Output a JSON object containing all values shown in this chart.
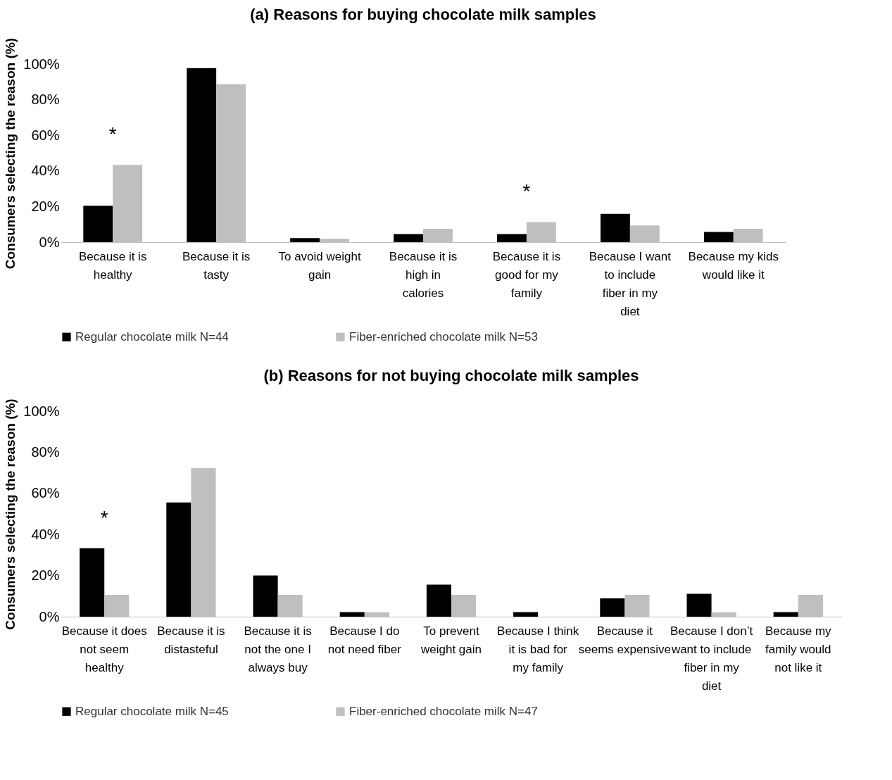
{
  "chart_data": [
    {
      "type": "bar",
      "title": "(a) Reasons for buying chocolate milk samples",
      "ylabel": "Consumers selecting the reason (%)",
      "categories": [
        "Because it is healthy",
        "Because it is tasty",
        "To avoid weight gain",
        "Because it is high in calories",
        "Because it is good for my family",
        "Because I want to include fiber in my diet",
        "Because my kids would like it"
      ],
      "series": [
        {
          "name": "Regular chocolate milk N=44",
          "color": "#000000",
          "values": [
            20.5,
            97.7,
            2.3,
            4.5,
            4.5,
            15.9,
            5.7
          ]
        },
        {
          "name": "Fiber-enriched chocolate milk N=53",
          "color": "#bfbfbf",
          "values": [
            43.4,
            88.7,
            1.9,
            7.5,
            11.3,
            9.4,
            7.5
          ]
        }
      ],
      "ylim": [
        0,
        100
      ],
      "yticks": [
        {
          "value": 0,
          "label": "0%"
        },
        {
          "value": 20,
          "label": "20%"
        },
        {
          "value": 40,
          "label": "40%"
        },
        {
          "value": 60,
          "label": "60%"
        },
        {
          "value": 80,
          "label": "80%"
        },
        {
          "value": 100,
          "label": "100%"
        }
      ],
      "legend": "bottom",
      "grid": false,
      "annotations": [
        {
          "text": "*",
          "x": "Because it is healthy",
          "y": 43.4
        },
        {
          "text": "*",
          "x": "Because it is good for my family",
          "y": 11.3
        }
      ]
    },
    {
      "type": "bar",
      "title": "(b) Reasons for not buying chocolate milk  samples",
      "ylabel": "Consumers selecting the reason (%)",
      "categories": [
        "Because it does not seem healthy",
        "Because it is distasteful",
        "Because it is not the one I always buy",
        "Because I do not need fiber",
        "To prevent weight gain",
        "Because I think it is bad for my family",
        "Because it seems expensive",
        "Because I don’t want to include fiber in my diet",
        "Because my family would not like it"
      ],
      "series": [
        {
          "name": "Regular chocolate milk N=45",
          "color": "#000000",
          "values": [
            33.3,
            55.6,
            20.0,
            2.2,
            15.6,
            2.2,
            8.9,
            11.1,
            2.2
          ]
        },
        {
          "name": "Fiber-enriched chocolate milk N=47",
          "color": "#bfbfbf",
          "values": [
            10.6,
            72.3,
            10.6,
            2.1,
            10.6,
            0,
            10.6,
            2.1,
            10.6
          ]
        }
      ],
      "ylim": [
        0,
        100
      ],
      "yticks": [
        {
          "value": 0,
          "label": "0%"
        },
        {
          "value": 20,
          "label": "20%"
        },
        {
          "value": 40,
          "label": "40%"
        },
        {
          "value": 60,
          "label": "60%"
        },
        {
          "value": 80,
          "label": "80%"
        },
        {
          "value": 100,
          "label": "100%"
        }
      ],
      "legend": "bottom",
      "grid": false,
      "annotations": [
        {
          "text": "*",
          "x": "Because it does not seem healthy",
          "y": 33.3
        }
      ]
    }
  ]
}
